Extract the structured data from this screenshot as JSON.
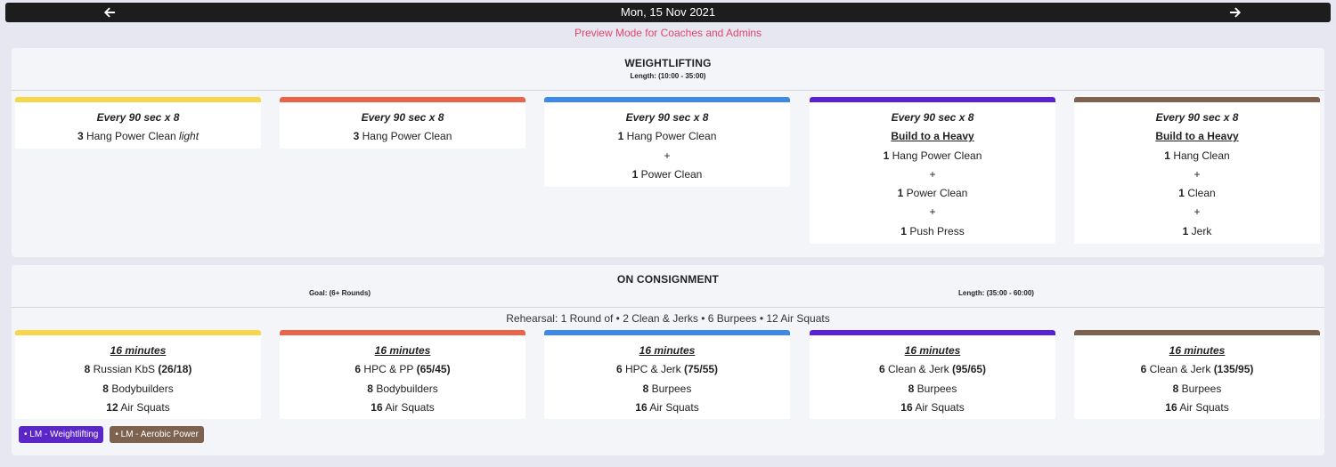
{
  "nav": {
    "date": "Mon, 15 Nov 2021",
    "prev_icon": "arrow-left-icon",
    "next_icon": "arrow-right-icon"
  },
  "preview_notice": "Preview Mode for Coaches and Admins",
  "colors": {
    "track1": "#f7d64a",
    "track2": "#e8654a",
    "track3": "#3d8ae6",
    "track4": "#5a22d8",
    "track5": "#7d6250",
    "tag_weightlifting": "#5b26c9",
    "tag_aerobic": "#7d6250"
  },
  "weightlifting": {
    "title": "WEIGHTLIFTING",
    "length": "Length: (10:00 - 35:00)",
    "cards": [
      {
        "format": "Every 90 sec x 8",
        "line1_count": "3",
        "line1_text": "Hang Power Clean",
        "line1_note": "light"
      },
      {
        "format": "Every 90 sec x 8",
        "line1_count": "3",
        "line1_text": "Hang Power Clean"
      },
      {
        "format": "Every 90 sec x 8",
        "line1_count": "1",
        "line1_text": "Hang Power Clean",
        "plus1": "+",
        "line2_count": "1",
        "line2_text": "Power Clean"
      },
      {
        "format": "Every 90 sec x 8",
        "build": "Build to a Heavy",
        "line1_count": "1",
        "line1_text": "Hang Power Clean",
        "plus1": "+",
        "line2_count": "1",
        "line2_text": "Power Clean",
        "plus2": "+",
        "line3_count": "1",
        "line3_text": "Push Press"
      },
      {
        "format": "Every 90 sec x 8",
        "build": "Build to a Heavy",
        "line1_count": "1",
        "line1_text": "Hang Clean",
        "plus1": "+",
        "line2_count": "1",
        "line2_text": "Clean",
        "plus2": "+",
        "line3_count": "1",
        "line3_text": "Jerk"
      }
    ]
  },
  "consignment": {
    "title": "ON CONSIGNMENT",
    "goal": "Goal: (6+ Rounds)",
    "length": "Length: (35:00 - 60:00)",
    "rehearsal": "Rehearsal: 1 Round of • 2 Clean & Jerks • 6 Burpees • 12 Air Squats",
    "cards": [
      {
        "time": "16 minutes",
        "l1_count": "8",
        "l1_text": "Russian KbS",
        "l1_load": "(26/18)",
        "l2_count": "8",
        "l2_text": "Bodybuilders",
        "l3_count": "12",
        "l3_text": "Air Squats"
      },
      {
        "time": "16 minutes",
        "l1_count": "6",
        "l1_text": "HPC & PP",
        "l1_load": "(65/45)",
        "l2_count": "8",
        "l2_text": "Bodybuilders",
        "l3_count": "16",
        "l3_text": "Air Squats"
      },
      {
        "time": "16 minutes",
        "l1_count": "6",
        "l1_text": "HPC & Jerk",
        "l1_load": "(75/55)",
        "l2_count": "8",
        "l2_text": "Burpees",
        "l3_count": "16",
        "l3_text": "Air Squats"
      },
      {
        "time": "16 minutes",
        "l1_count": "6",
        "l1_text": "Clean & Jerk",
        "l1_load": "(95/65)",
        "l2_count": "8",
        "l2_text": "Burpees",
        "l3_count": "16",
        "l3_text": "Air Squats"
      },
      {
        "time": "16 minutes",
        "l1_count": "6",
        "l1_text": "Clean & Jerk",
        "l1_load": "(135/95)",
        "l2_count": "8",
        "l2_text": "Burpees",
        "l3_count": "16",
        "l3_text": "Air Squats"
      }
    ],
    "tags": [
      {
        "label": "• LM - Weightlifting"
      },
      {
        "label": "• LM - Aerobic Power"
      }
    ]
  }
}
